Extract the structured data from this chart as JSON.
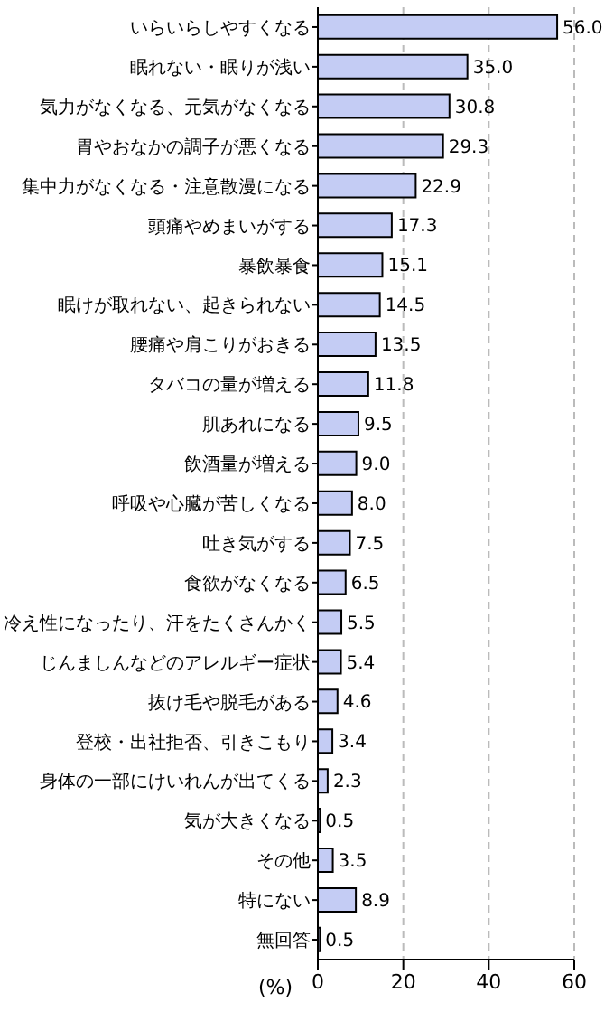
{
  "chart_data": {
    "type": "bar",
    "orientation": "horizontal",
    "xlabel": "(%)",
    "categories": [
      "いらいらしやすくなる",
      "眠れない・眠りが浅い",
      "気力がなくなる、元気がなくなる",
      "胃やおなかの調子が悪くなる",
      "集中力がなくなる・注意散漫になる",
      "頭痛やめまいがする",
      "暴飲暴食",
      "眠けが取れない、起きられない",
      "腰痛や肩こりがおきる",
      "タバコの量が増える",
      "肌あれになる",
      "飲酒量が増える",
      "呼吸や心臓が苦しくなる",
      "吐き気がする",
      "食欲がなくなる",
      "冷え性になったり、汗をたくさんかく",
      "じんましんなどのアレルギー症状",
      "抜け毛や脱毛がある",
      "登校・出社拒否、引きこもり",
      "身体の一部にけいれんが出てくる",
      "気が大きくなる",
      "その他",
      "特にない",
      "無回答"
    ],
    "values": [
      56.0,
      35.0,
      30.8,
      29.3,
      22.9,
      17.3,
      15.1,
      14.5,
      13.5,
      11.8,
      9.5,
      9.0,
      8.0,
      7.5,
      6.5,
      5.5,
      5.4,
      4.6,
      3.4,
      2.3,
      0.5,
      3.5,
      8.9,
      0.5
    ],
    "value_labels": [
      "56.0",
      "35.0",
      "30.8",
      "29.3",
      "22.9",
      "17.3",
      "15.1",
      "14.5",
      "13.5",
      "11.8",
      "9.5",
      "9.0",
      "8.0",
      "7.5",
      "6.5",
      "5.5",
      "5.4",
      "4.6",
      "3.4",
      "2.3",
      "0.5",
      "3.5",
      "8.9",
      "0.5"
    ],
    "color": "#c4ccf4",
    "xlim": [
      0,
      60
    ],
    "xticks": [
      0,
      20,
      40,
      60
    ],
    "grid": "x"
  }
}
